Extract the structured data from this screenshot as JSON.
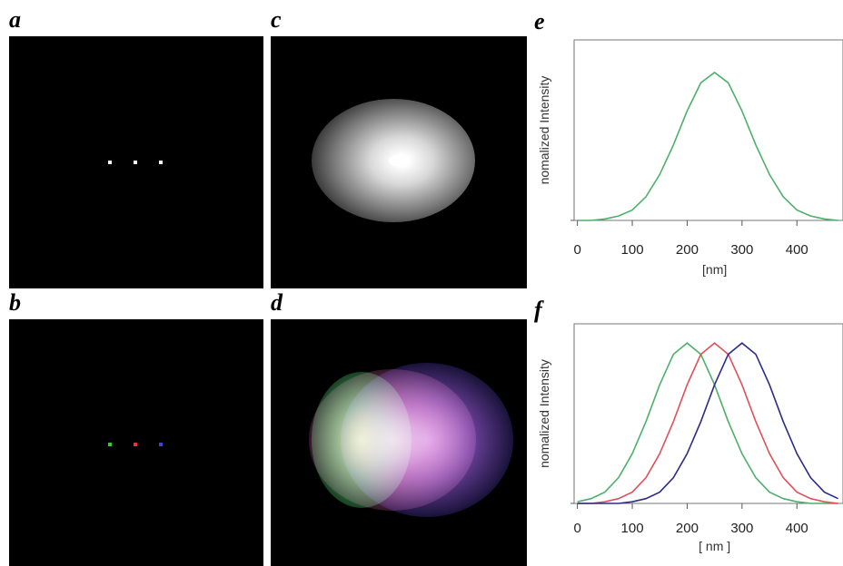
{
  "panels": [
    "a",
    "b",
    "c",
    "d"
  ],
  "chart_data": [
    {
      "type": "line",
      "label": "e",
      "ylabel": "nomalized Intensity",
      "xlabel": "[nm]",
      "x": [
        0,
        25,
        50,
        75,
        100,
        125,
        150,
        175,
        200,
        225,
        250,
        275,
        300,
        325,
        350,
        375,
        400,
        425,
        450,
        475
      ],
      "series": [
        {
          "color": "#4cb06a",
          "values": [
            0,
            0,
            0.01,
            0.03,
            0.07,
            0.16,
            0.31,
            0.51,
            0.74,
            0.93,
            1,
            0.93,
            0.74,
            0.51,
            0.31,
            0.16,
            0.07,
            0.03,
            0.01,
            0
          ]
        }
      ],
      "xlim": [
        -6,
        484
      ],
      "ylim": [
        0,
        1.22
      ],
      "xticks": [
        0,
        100,
        200,
        300,
        400
      ]
    },
    {
      "type": "line",
      "label": "f",
      "ylabel": "nomalized Intensity",
      "xlabel": "[ nm ]",
      "x": [
        0,
        25,
        50,
        75,
        100,
        125,
        150,
        175,
        200,
        225,
        250,
        275,
        300,
        325,
        350,
        375,
        400,
        425,
        450,
        475
      ],
      "series": [
        {
          "color": "#4cb06a",
          "values": [
            0.01,
            0.03,
            0.07,
            0.16,
            0.31,
            0.51,
            0.74,
            0.93,
            1,
            0.93,
            0.74,
            0.51,
            0.31,
            0.16,
            0.07,
            0.03,
            0.01,
            0,
            0,
            0
          ]
        },
        {
          "color": "#e0505a",
          "values": [
            0,
            0,
            0.01,
            0.03,
            0.07,
            0.16,
            0.31,
            0.51,
            0.74,
            0.93,
            1,
            0.93,
            0.74,
            0.51,
            0.31,
            0.16,
            0.07,
            0.03,
            0.01,
            0
          ]
        },
        {
          "color": "#2a2c88",
          "values": [
            0,
            0,
            0,
            0,
            0.01,
            0.03,
            0.07,
            0.16,
            0.31,
            0.51,
            0.74,
            0.93,
            1,
            0.93,
            0.74,
            0.51,
            0.31,
            0.16,
            0.07,
            0.03
          ]
        }
      ],
      "xlim": [
        -6,
        484
      ],
      "ylim": [
        0,
        1.12
      ],
      "xticks": [
        0,
        100,
        200,
        300,
        400
      ]
    }
  ]
}
